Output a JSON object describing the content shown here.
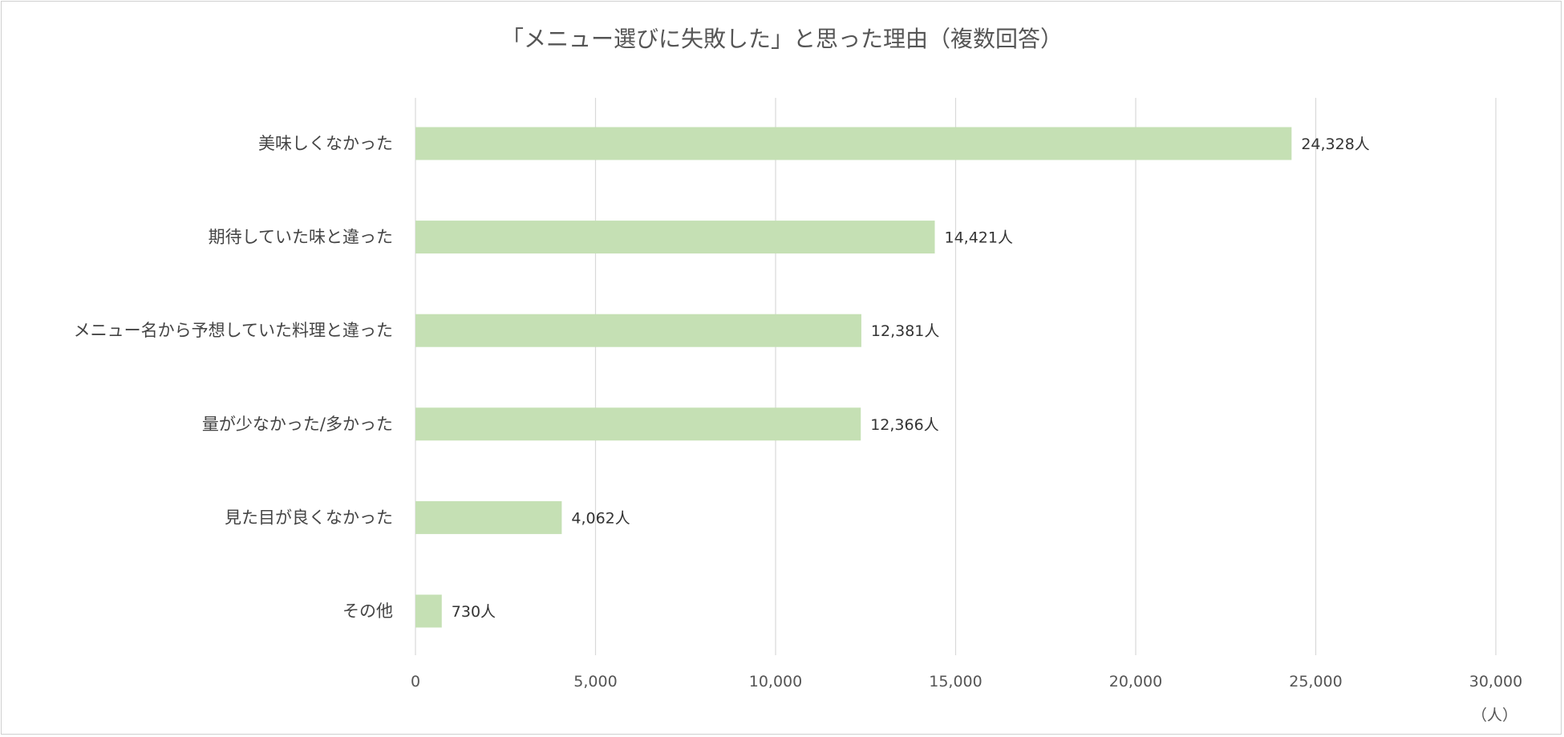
{
  "chart_data": {
    "type": "bar",
    "orientation": "horizontal",
    "title": "「メニュー選びに失敗した」と思った理由（複数回答）",
    "categories": [
      "美味しくなかった",
      "期待していた味と違った",
      "メニュー名から予想していた料理と違った",
      "量が少なかった/多かった",
      "見た目が良くなかった",
      "その他"
    ],
    "values": [
      24328,
      14421,
      12381,
      12366,
      4062,
      730
    ],
    "data_labels": [
      "24,328人",
      "14,421人",
      "12,381人",
      "12,366人",
      "4,062人",
      "730人"
    ],
    "xlim": [
      0,
      30000
    ],
    "xticks": [
      0,
      5000,
      10000,
      15000,
      20000,
      25000,
      30000
    ],
    "xtick_labels": [
      "0",
      "5,000",
      "10,000",
      "15,000",
      "20,000",
      "25,000",
      "30,000"
    ],
    "unit_label": "（人）",
    "grid": true,
    "legend": "none",
    "bar_color": "#c5e0b4",
    "grid_color": "#d9d9d9"
  }
}
